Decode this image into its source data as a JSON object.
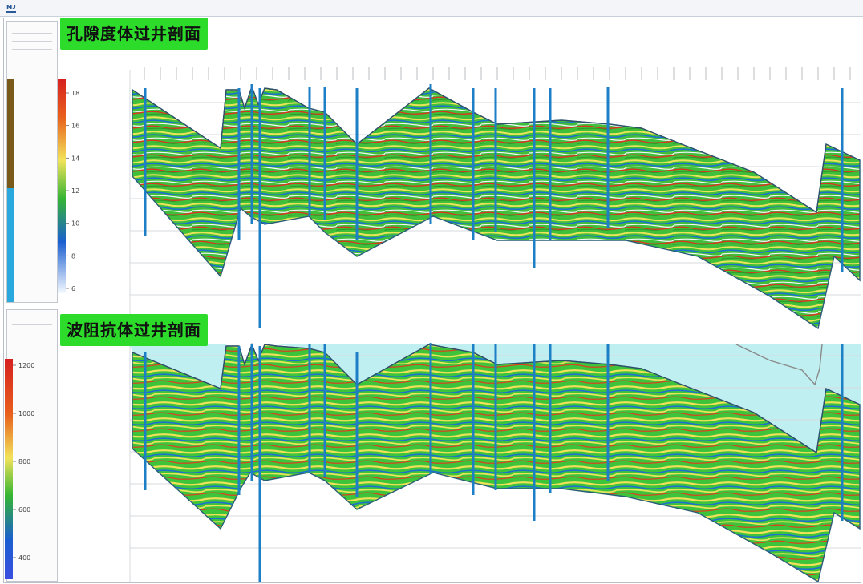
{
  "window": {
    "logo_text": "ᴍᴊ"
  },
  "labels": {
    "porosity_title": "孔隙度体过井剖面",
    "impedance_title": "波阻抗体过井剖面"
  },
  "top_colorbar": {
    "ticks": [
      "18",
      "16",
      "14",
      "12",
      "10",
      "8",
      "6"
    ]
  },
  "bottom_colorbar": {
    "ticks": [
      "1200",
      "1000",
      "800",
      "600",
      "400"
    ]
  },
  "colors": {
    "accent_green": "#2ddc2a",
    "well_blue": "#1d7fc6",
    "sky_fill": "#bfeff0",
    "panel_border": "#c2c7cf"
  }
}
